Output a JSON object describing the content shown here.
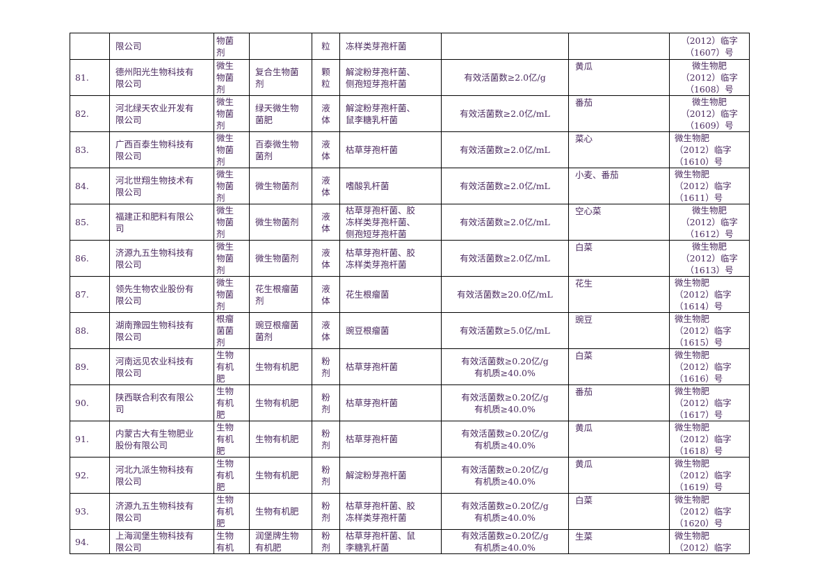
{
  "rows": [
    {
      "no": "",
      "company": [
        "限公司"
      ],
      "type": [
        "物菌",
        "剂"
      ],
      "name": [],
      "form": [
        "粒"
      ],
      "strain": [
        "冻样类芽孢杆菌"
      ],
      "content": [],
      "crop": "",
      "reg": [
        "（2012）临字",
        "（1607）号"
      ],
      "reg_align": "center"
    },
    {
      "no": "81.",
      "company": [
        "德州阳光生物科技有",
        "限公司"
      ],
      "type": [
        "微生",
        "物菌",
        "剂"
      ],
      "name": [
        "复合生物菌",
        "剂"
      ],
      "form": [
        "颗",
        "粒"
      ],
      "strain": [
        "解淀粉芽孢杆菌、",
        "侧孢短芽孢杆菌"
      ],
      "content": [
        "有效活菌数≥2.0亿/g"
      ],
      "crop": "黄瓜",
      "reg": [
        "微生物肥",
        "（2012）临字",
        "（1608）号"
      ],
      "reg_align": "center"
    },
    {
      "no": "82.",
      "company": [
        "河北绿天农业开发有",
        "限公司"
      ],
      "type": [
        "微生",
        "物菌",
        "剂"
      ],
      "name": [
        "绿天微生物",
        "菌肥"
      ],
      "form": [
        "液",
        "体"
      ],
      "strain": [
        "解淀粉芽孢杆菌、",
        "鼠李糖乳杆菌"
      ],
      "content": [
        "有效活菌数≥2.0亿/mL"
      ],
      "crop": "番茄",
      "reg": [
        "微生物肥",
        "（2012）临字",
        "（1609）号"
      ],
      "reg_align": "center"
    },
    {
      "no": "83.",
      "company": [
        "广西百泰生物科技有",
        "限公司"
      ],
      "type": [
        "微生",
        "物菌",
        "剂"
      ],
      "name": [
        "百泰微生物",
        "菌剂"
      ],
      "form": [
        "液",
        "体"
      ],
      "strain": [
        "枯草芽孢杆菌"
      ],
      "content": [
        "有效活菌数≥2.0亿/mL"
      ],
      "crop": "菜心",
      "reg": [
        "微生物肥",
        "（2012）临字",
        "（1610）号"
      ],
      "reg_align": "left"
    },
    {
      "no": "84.",
      "company": [
        "河北世翔生物技术有",
        "限公司"
      ],
      "type": [
        "微生",
        "物菌",
        "剂"
      ],
      "name": [
        "微生物菌剂"
      ],
      "form": [
        "液",
        "体"
      ],
      "strain": [
        "嗜酸乳杆菌"
      ],
      "content": [
        "有效活菌数≥2.0亿/mL"
      ],
      "crop": "小麦、番茄",
      "reg": [
        "微生物肥",
        "（2012）临字",
        "（1611）号"
      ],
      "reg_align": "left"
    },
    {
      "no": "85.",
      "company": [
        "福建正和肥料有限公",
        "司"
      ],
      "type": [
        "微生",
        "物菌",
        "剂"
      ],
      "name": [
        "微生物菌剂"
      ],
      "form": [
        "液",
        "体"
      ],
      "strain": [
        "枯草芽孢杆菌、胶",
        "冻样类芽孢杆菌、",
        "侧孢短芽孢杆菌"
      ],
      "content": [
        "有效活菌数≥2.0亿/mL"
      ],
      "crop": "空心菜",
      "reg": [
        "微生物肥",
        "（2012）临字",
        "（1612）号"
      ],
      "reg_align": "center"
    },
    {
      "no": "86.",
      "company": [
        "济源九五生物科技有",
        "限公司"
      ],
      "type": [
        "微生",
        "物菌",
        "剂"
      ],
      "name": [
        "微生物菌剂"
      ],
      "form": [
        "液",
        "体"
      ],
      "strain": [
        "枯草芽孢杆菌、胶",
        "冻样类芽孢杆菌"
      ],
      "content": [
        "有效活菌数≥2.0亿/mL"
      ],
      "crop": "白菜",
      "reg": [
        "微生物肥",
        "（2012）临字",
        "（1613）号"
      ],
      "reg_align": "center"
    },
    {
      "no": "87.",
      "company": [
        "领先生物农业股份有",
        "限公司"
      ],
      "type": [
        "微生",
        "物菌",
        "剂"
      ],
      "name": [
        "花生根瘤菌",
        "剂"
      ],
      "form": [
        "液",
        "体"
      ],
      "strain": [
        "花生根瘤菌"
      ],
      "content": [
        "有效活菌数≥20.0亿/mL"
      ],
      "crop": "花生",
      "reg": [
        "微生物肥",
        "（2012）临字",
        "（1614）号"
      ],
      "reg_align": "left"
    },
    {
      "no": "88.",
      "company": [
        "湖南豫园生物科技有",
        "限公司"
      ],
      "type": [
        "根瘤",
        "菌菌",
        "剂"
      ],
      "name": [
        "豌豆根瘤菌",
        "菌剂"
      ],
      "form": [
        "液",
        "体"
      ],
      "strain": [
        "豌豆根瘤菌"
      ],
      "content": [
        "有效活菌数≥5.0亿/mL"
      ],
      "crop": "豌豆",
      "reg": [
        "微生物肥",
        "（2012）临字",
        "（1615）号"
      ],
      "reg_align": "left",
      "dark": true
    },
    {
      "no": "89.",
      "company": [
        "河南远见农业科技有",
        "限公司"
      ],
      "type": [
        "生物",
        "有机",
        "肥"
      ],
      "name": [
        "生物有机肥"
      ],
      "form": [
        "粉",
        "剂"
      ],
      "strain": [
        "枯草芽孢杆菌"
      ],
      "content": [
        "有效活菌数≥0.20亿/g",
        "有机质≥40.0%"
      ],
      "crop": "白菜",
      "reg": [
        "微生物肥",
        "（2012）临字",
        "（1616）号"
      ],
      "reg_align": "left"
    },
    {
      "no": "90.",
      "company": [
        "陕西联合利农有限公",
        "司"
      ],
      "type": [
        "生物",
        "有机",
        "肥"
      ],
      "name": [
        "生物有机肥"
      ],
      "form": [
        "粉",
        "剂"
      ],
      "strain": [
        "枯草芽孢杆菌"
      ],
      "content": [
        "有效活菌数≥0.20亿/g",
        "有机质≥40.0%"
      ],
      "crop": "番茄",
      "reg": [
        "微生物肥",
        "（2012）临字",
        "（1617）号"
      ],
      "reg_align": "left"
    },
    {
      "no": "91.",
      "company": [
        "内蒙古大有生物肥业",
        "股份有限公司"
      ],
      "type": [
        "生物",
        "有机",
        "肥"
      ],
      "name": [
        "生物有机肥"
      ],
      "form": [
        "粉",
        "剂"
      ],
      "strain": [
        "枯草芽孢杆菌"
      ],
      "content": [
        "有效活菌数≥0.20亿/g",
        "有机质≥40.0%"
      ],
      "crop": "黄瓜",
      "crop_mid": true,
      "reg": [
        "微生物肥",
        "（2012）临字",
        "（1618）号"
      ],
      "reg_align": "left"
    },
    {
      "no": "92.",
      "company": [
        "河北九派生物科技有",
        "限公司"
      ],
      "type": [
        "生物",
        "有机",
        "肥"
      ],
      "name": [
        "生物有机肥"
      ],
      "form": [
        "粉",
        "剂"
      ],
      "strain": [
        "解淀粉芽孢杆菌"
      ],
      "content": [
        "有效活菌数≥0.20亿/g",
        "有机质≥40.0%"
      ],
      "crop": "黄瓜",
      "reg": [
        "微生物肥",
        "（2012）临字",
        "（1619）号"
      ],
      "reg_align": "left"
    },
    {
      "no": "93.",
      "company": [
        "济源九五生物科技有",
        "限公司"
      ],
      "type": [
        "生物",
        "有机",
        "肥"
      ],
      "name": [
        "生物有机肥"
      ],
      "form": [
        "粉",
        "剂"
      ],
      "strain": [
        "枯草芽孢杆菌、胶",
        "冻样类芽孢杆菌"
      ],
      "content": [
        "有效活菌数≥0.20亿/g",
        "有机质≥40.0%"
      ],
      "crop": "白菜",
      "crop_mid": true,
      "reg": [
        "微生物肥",
        "（2012）临字",
        "（1620）号"
      ],
      "reg_align": "left"
    },
    {
      "no": "94.",
      "company": [
        "上海润堡生物科技有",
        "限公司"
      ],
      "type": [
        "生物",
        "有机"
      ],
      "name": [
        "润堡牌生物",
        "有机肥"
      ],
      "form": [
        "粉",
        "剂"
      ],
      "strain": [
        "枯草芽孢杆菌、鼠",
        "李糖乳杆菌"
      ],
      "content": [
        "有效活菌数≥0.20亿/g",
        "有机质≥40.0%"
      ],
      "crop": "生菜",
      "reg": [
        "微生物肥",
        "（2012）临字"
      ],
      "reg_align": "left"
    }
  ]
}
